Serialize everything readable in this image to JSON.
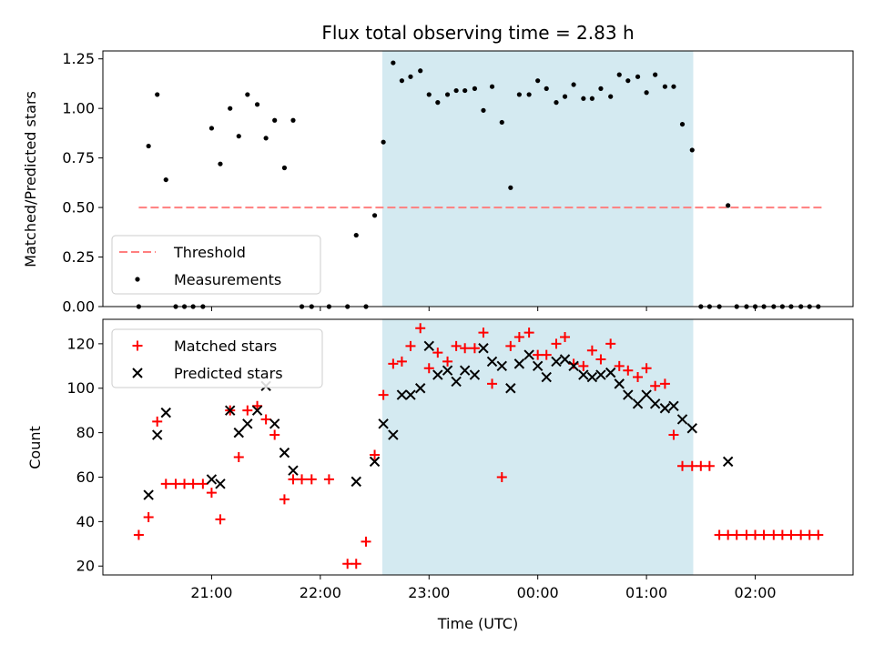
{
  "chart_data": {
    "type": "scatter",
    "title": "Flux total observing time = 2.83 h",
    "xlabel": "Time (UTC)",
    "x_unit": "hours since 00:00 UTC (negative = previous day)",
    "xlim": [
      -4.0,
      2.9
    ],
    "xticks": [
      -3,
      -2,
      -1,
      0,
      1,
      2
    ],
    "xtick_labels": [
      "21:00",
      "22:00",
      "23:00",
      "00:00",
      "01:00",
      "02:00"
    ],
    "observing_window": [
      -1.43,
      1.43
    ],
    "observing_window_color": "#d4eaf1",
    "panels": [
      {
        "name": "ratio",
        "ylabel": "Matched/Predicted stars",
        "ylim": [
          0,
          1.29
        ],
        "yticks": [
          0,
          0.25,
          0.5,
          0.75,
          1.0,
          1.25
        ],
        "ytick_labels": [
          "0.00",
          "0.25",
          "0.50",
          "0.75",
          "1.00",
          "1.25"
        ],
        "threshold": {
          "label": "Threshold",
          "value": 0.5,
          "x_range": [
            -3.67,
            2.62
          ],
          "color": "#ff7f7f"
        },
        "legend_labels": [
          "Threshold",
          "Measurements"
        ],
        "measurements": {
          "label": "Measurements",
          "color": "#000000",
          "x": [
            -3.67,
            -3.58,
            -3.5,
            -3.42,
            -3.33,
            -3.25,
            -3.17,
            -3.08,
            -3.0,
            -2.92,
            -2.83,
            -2.75,
            -2.67,
            -2.58,
            -2.5,
            -2.42,
            -2.33,
            -2.25,
            -2.17,
            -2.08,
            -1.92,
            -1.75,
            -1.67,
            -1.58,
            -1.5,
            -1.42,
            -1.33,
            -1.25,
            -1.17,
            -1.08,
            -1.0,
            -0.92,
            -0.83,
            -0.75,
            -0.67,
            -0.58,
            -0.5,
            -0.42,
            -0.33,
            -0.25,
            -0.17,
            -0.08,
            0.0,
            0.08,
            0.17,
            0.25,
            0.33,
            0.42,
            0.5,
            0.58,
            0.67,
            0.75,
            0.83,
            0.92,
            1.0,
            1.08,
            1.17,
            1.25,
            1.33,
            1.42,
            1.5,
            1.58,
            1.67,
            1.75,
            1.83,
            1.92,
            2.0,
            2.08,
            2.17,
            2.25,
            2.33,
            2.42,
            2.5,
            2.58
          ],
          "y": [
            0.0,
            0.81,
            1.07,
            0.64,
            0.0,
            0.0,
            0.0,
            0.0,
            0.9,
            0.72,
            1.0,
            0.86,
            1.07,
            1.02,
            0.85,
            0.94,
            0.7,
            0.94,
            0.0,
            0.0,
            0.0,
            0.0,
            0.36,
            0.0,
            0.46,
            0.83,
            1.23,
            1.14,
            1.16,
            1.19,
            1.07,
            1.03,
            1.07,
            1.09,
            1.09,
            1.1,
            0.99,
            1.11,
            0.93,
            0.6,
            1.07,
            1.07,
            1.14,
            1.1,
            1.03,
            1.06,
            1.12,
            1.05,
            1.05,
            1.1,
            1.06,
            1.17,
            1.14,
            1.16,
            1.08,
            1.17,
            1.11,
            1.11,
            0.92,
            0.79,
            0.0,
            0.0,
            0.0,
            0.51,
            0.0,
            0.0,
            0.0,
            0.0,
            0.0,
            0.0,
            0.0,
            0.0,
            0.0,
            0.0
          ]
        }
      },
      {
        "name": "count",
        "ylabel": "Count",
        "ylim": [
          16,
          131
        ],
        "yticks": [
          20,
          40,
          60,
          80,
          100,
          120
        ],
        "ytick_labels": [
          "20",
          "40",
          "60",
          "80",
          "100",
          "120"
        ],
        "legend_labels": [
          "Matched stars",
          "Predicted stars"
        ],
        "series": [
          {
            "name": "Matched stars",
            "marker": "+",
            "color": "#ff0000",
            "x": [
              -3.67,
              -3.58,
              -3.5,
              -3.42,
              -3.33,
              -3.25,
              -3.17,
              -3.08,
              -3.0,
              -2.92,
              -2.83,
              -2.75,
              -2.67,
              -2.58,
              -2.5,
              -2.42,
              -2.33,
              -2.25,
              -2.17,
              -2.08,
              -1.92,
              -1.75,
              -1.67,
              -1.58,
              -1.5,
              -1.42,
              -1.33,
              -1.25,
              -1.17,
              -1.08,
              -1.0,
              -0.92,
              -0.83,
              -0.75,
              -0.67,
              -0.58,
              -0.5,
              -0.42,
              -0.33,
              -0.25,
              -0.17,
              -0.08,
              0.0,
              0.08,
              0.17,
              0.25,
              0.33,
              0.42,
              0.5,
              0.58,
              0.67,
              0.75,
              0.83,
              0.92,
              1.0,
              1.08,
              1.17,
              1.25,
              1.33,
              1.42,
              1.5,
              1.58,
              1.67,
              1.75,
              1.83,
              1.92,
              2.0,
              2.08,
              2.17,
              2.25,
              2.33,
              2.42,
              2.5,
              2.58
            ],
            "y": [
              34,
              42,
              85,
              57,
              57,
              57,
              57,
              57,
              53,
              41,
              90,
              69,
              90,
              92,
              86,
              79,
              50,
              59,
              59,
              59,
              59,
              21,
              21,
              31,
              70,
              97,
              111,
              112,
              119,
              127,
              109,
              116,
              112,
              119,
              118,
              118,
              125,
              102,
              60,
              119,
              123,
              125,
              115,
              115,
              120,
              123,
              111,
              110,
              117,
              113,
              120,
              110,
              108,
              105,
              109,
              101,
              102,
              79,
              65,
              65,
              65,
              65,
              34,
              34,
              34,
              34,
              34,
              34,
              34,
              34,
              34,
              34,
              34,
              34
            ]
          },
          {
            "name": "Predicted stars",
            "marker": "x",
            "color": "#000000",
            "x": [
              -3.58,
              -3.5,
              -3.42,
              -3.0,
              -2.92,
              -2.83,
              -2.75,
              -2.67,
              -2.58,
              -2.5,
              -2.42,
              -2.33,
              -2.25,
              -1.67,
              -1.5,
              -1.42,
              -1.33,
              -1.25,
              -1.17,
              -1.08,
              -1.0,
              -0.92,
              -0.83,
              -0.75,
              -0.67,
              -0.58,
              -0.5,
              -0.42,
              -0.33,
              -0.25,
              -0.17,
              -0.08,
              0.0,
              0.08,
              0.17,
              0.25,
              0.33,
              0.42,
              0.5,
              0.58,
              0.67,
              0.75,
              0.83,
              0.92,
              1.0,
              1.08,
              1.17,
              1.25,
              1.33,
              1.42,
              1.75
            ],
            "y": [
              52,
              79,
              89,
              59,
              57,
              90,
              80,
              84,
              90,
              101,
              84,
              71,
              63,
              58,
              67,
              84,
              79,
              97,
              97,
              100,
              119,
              106,
              108,
              103,
              108,
              106,
              118,
              112,
              110,
              100,
              111,
              115,
              110,
              105,
              112,
              113,
              110,
              106,
              105,
              106,
              107,
              102,
              97,
              93,
              97,
              93,
              91,
              92,
              86,
              82,
              67
            ]
          }
        ]
      }
    ]
  }
}
